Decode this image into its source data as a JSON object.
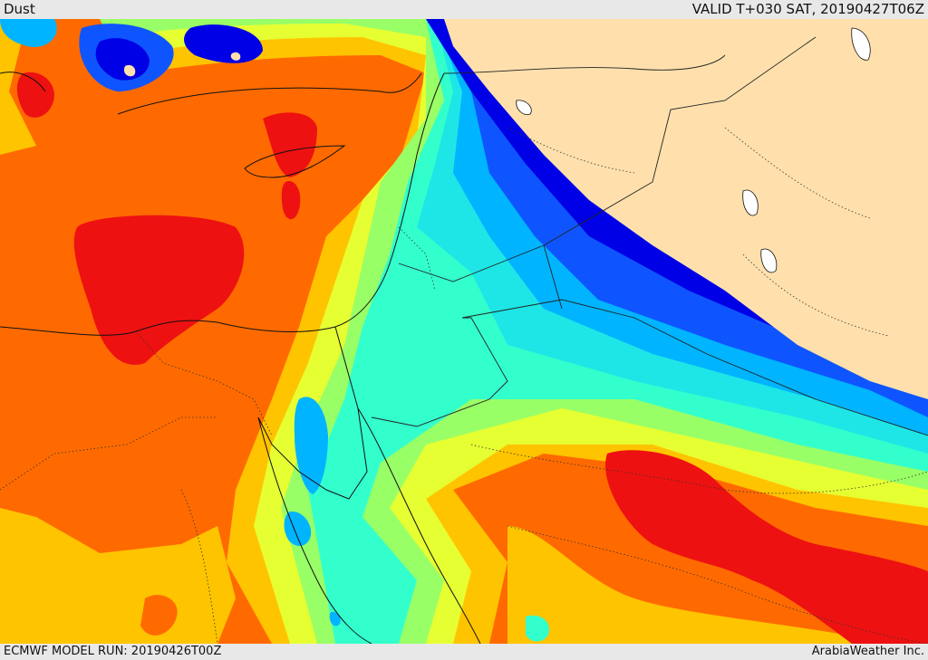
{
  "header": {
    "product": "Dust",
    "valid": "VALID T+030 SAT, 20190427T06Z"
  },
  "footer": {
    "model_run": "ECMWF MODEL RUN: 20190426T00Z",
    "provider": "ArabiaWeather Inc."
  },
  "palette": {
    "red": "#ee1111",
    "orange": "#ff6a00",
    "amber": "#ffc400",
    "yellow": "#e6ff33",
    "lime": "#99ff66",
    "aqua": "#33ffcc",
    "cyan": "#1ee6e6",
    "sky": "#00b4ff",
    "blue": "#0f55ff",
    "navy": "#0000e6",
    "nodata": "#ffe0ac"
  }
}
